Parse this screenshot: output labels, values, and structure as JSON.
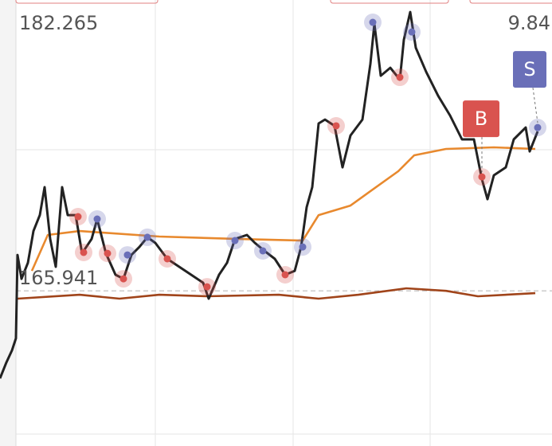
{
  "chart_data": {
    "type": "line",
    "ylim": [
      155.23,
      183.8
    ],
    "yticks": [
      182.265,
      165.941
    ],
    "xlim": [
      0,
      693
    ],
    "annotations": {
      "right_price": "9.84",
      "buy": "B",
      "sell": "S"
    },
    "reference_line": 165.17,
    "series": [
      {
        "color": "#222222",
        "x": [
          0,
          8,
          15,
          20,
          22,
          27,
          35,
          42,
          50,
          56,
          63,
          70,
          78,
          85,
          95,
          103,
          115,
          122,
          133,
          145,
          155,
          165,
          175,
          185,
          195,
          210,
          225,
          240,
          255,
          262,
          275,
          285,
          295,
          310,
          320,
          332,
          345,
          358,
          370,
          378,
          385,
          392,
          400,
          408,
          420,
          430,
          440,
          455,
          465,
          470,
          478,
          490,
          502,
          507,
          515,
          522,
          535,
          550,
          565,
          580,
          595,
          605,
          612,
          620,
          635,
          645,
          660,
          665,
          675
        ],
        "values": [
          159.56,
          160.58,
          161.35,
          162.12,
          167.47,
          165.94,
          166.96,
          169.0,
          170.02,
          171.81,
          168.49,
          166.71,
          171.81,
          170.02,
          170.02,
          167.57,
          168.49,
          169.77,
          167.57,
          166.2,
          165.94,
          167.47,
          167.98,
          168.6,
          168.24,
          167.22,
          166.71,
          166.2,
          165.69,
          164.67,
          166.2,
          166.96,
          168.49,
          168.75,
          168.24,
          167.73,
          167.22,
          166.2,
          166.45,
          167.98,
          170.53,
          171.81,
          175.89,
          176.14,
          175.74,
          173.08,
          175.12,
          176.14,
          179.71,
          182.265,
          178.95,
          179.46,
          178.7,
          181.25,
          183.03,
          180.74,
          179.2,
          177.67,
          176.4,
          174.87,
          174.87,
          172.32,
          171.04,
          172.57,
          173.08,
          174.87,
          175.63,
          174.1,
          175.38
        ]
      },
      {
        "color": "#e8892e",
        "x": [
          40,
          60,
          100,
          200,
          300,
          380,
          400,
          440,
          465,
          500,
          520,
          560,
          620,
          672
        ],
        "values": [
          166.45,
          168.75,
          169.0,
          168.65,
          168.49,
          168.39,
          170.02,
          170.63,
          171.55,
          172.83,
          173.85,
          174.26,
          174.36,
          174.26
        ]
      },
      {
        "color": "#a0441a",
        "x": [
          22,
          100,
          150,
          200,
          260,
          350,
          400,
          450,
          510,
          560,
          600,
          672
        ],
        "values": [
          164.67,
          164.92,
          164.67,
          164.92,
          164.82,
          164.92,
          164.67,
          164.92,
          165.33,
          165.17,
          164.82,
          165.02
        ]
      }
    ],
    "markers": {
      "red": {
        "color": "#d9534f",
        "x": [
          98,
          105,
          135,
          155,
          210,
          260,
          358,
          422,
          502,
          605
        ],
        "values": [
          169.92,
          167.63,
          167.57,
          165.94,
          167.22,
          165.43,
          166.2,
          175.74,
          178.85,
          172.47
        ]
      },
      "blue": {
        "color": "#6a6fb8",
        "x": [
          122,
          160,
          185,
          295,
          330,
          380,
          468,
          517,
          675
        ],
        "values": [
          169.77,
          167.47,
          168.6,
          168.39,
          167.73,
          167.98,
          182.37,
          181.75,
          175.63
        ]
      }
    }
  }
}
